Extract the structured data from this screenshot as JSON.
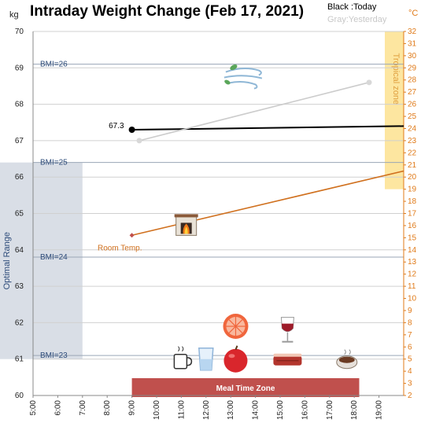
{
  "chart_data": {
    "type": "line",
    "title": "Intraday Weight Change (Feb 17, 2021)",
    "legend": {
      "today": "Black :Today",
      "yesterday": "Gray:Yesterday",
      "placement": "top-right"
    },
    "y_unit": "kg",
    "y2_unit": "°C",
    "x_ticks": [
      "5:00",
      "6:00",
      "7:00",
      "8:00",
      "9:00",
      "10:00",
      "11:00",
      "12:00",
      "13:00",
      "14:00",
      "15:00",
      "16:00",
      "17:00",
      "18:00",
      "19:00"
    ],
    "x_range": [
      5,
      20
    ],
    "y_range": [
      60,
      70
    ],
    "y_ticks": [
      60,
      61,
      62,
      63,
      64,
      65,
      66,
      67,
      68,
      69,
      70
    ],
    "y2_range": [
      2,
      32
    ],
    "y2_ticks": [
      2,
      3,
      4,
      5,
      6,
      7,
      8,
      9,
      10,
      11,
      12,
      13,
      14,
      15,
      16,
      17,
      18,
      19,
      20,
      21,
      22,
      23,
      24,
      25,
      26,
      27,
      28,
      29,
      30,
      31,
      32
    ],
    "grid": "horizontal",
    "series": [
      {
        "name": "Today",
        "color": "#000000",
        "x": [
          9,
          20
        ],
        "y": [
          67.3,
          67.4
        ],
        "label": "67.3"
      },
      {
        "name": "Yesterday",
        "color": "#cccccc",
        "x": [
          9.3,
          18.6
        ],
        "y": [
          67.0,
          68.6
        ]
      },
      {
        "name": "Room Temp.",
        "color": "#d0701e",
        "axis": "y2",
        "x": [
          9,
          20
        ],
        "y": [
          15.2,
          20.5
        ]
      }
    ],
    "bmi_lines": [
      {
        "label": "BMI=26",
        "y": 69.1
      },
      {
        "label": "BMI=25",
        "y": 66.4
      },
      {
        "label": "BMI=24",
        "y": 63.8
      },
      {
        "label": "BMI=23",
        "y": 61.1
      }
    ],
    "optimal_range": {
      "label": "Optimal Range",
      "from": 61.0,
      "to": 66.4,
      "color": "#d9dee6"
    },
    "tropical_zone": {
      "label": "Tropical zone",
      "from": 19,
      "to": 32,
      "color": "#fde6a0"
    },
    "meal_time_zone": {
      "label": "Meal Time Zone",
      "from": 9,
      "to": 18.2,
      "color": "#c0504d"
    },
    "room_temp_label": "Room Temp.",
    "icons": [
      {
        "name": "wind-icon",
        "x": 13.5,
        "y": 68.8
      },
      {
        "name": "fireplace-icon",
        "x": 11.2,
        "y": 64.7
      },
      {
        "name": "grapefruit-icon",
        "x": 13.2,
        "y": 61.9
      },
      {
        "name": "wine-glass-icon",
        "x": 15.3,
        "y": 61.8
      },
      {
        "name": "coffee-cup-icon",
        "x": 11.0,
        "y": 61.0
      },
      {
        "name": "water-glass-icon",
        "x": 12.0,
        "y": 61.0
      },
      {
        "name": "apple-icon",
        "x": 13.2,
        "y": 61.0
      },
      {
        "name": "steak-icon",
        "x": 15.3,
        "y": 61.0
      },
      {
        "name": "hot-drink-bowl-icon",
        "x": 17.7,
        "y": 61.0
      }
    ]
  }
}
